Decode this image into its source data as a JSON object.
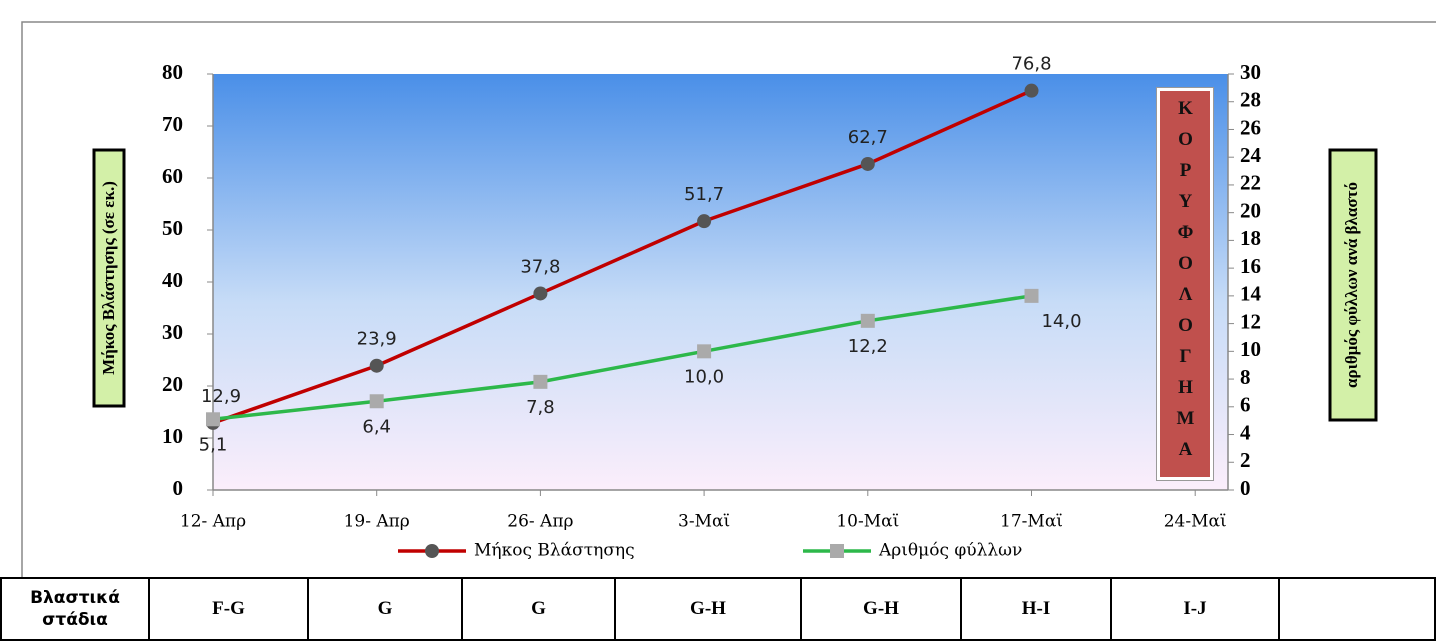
{
  "chart_data": {
    "type": "line",
    "categories": [
      "12- Απρ",
      "19- Απρ",
      "26- Απρ",
      "3-Μαϊ",
      "10-Μαϊ",
      "17-Μαϊ",
      "24-Μαϊ"
    ],
    "ylabel": "Μήκος Βλάστησης (σε εκ.)",
    "y2label": "αριθμός φύλλων ανά βλαστό",
    "annotation": "ΚΟΡΥΦΟΛΟΓΗΜΑ",
    "ylim": [
      0,
      80
    ],
    "yticks": [
      0,
      10,
      20,
      30,
      40,
      50,
      60,
      70,
      80
    ],
    "y2lim": [
      0,
      30
    ],
    "y2ticks": [
      0,
      2,
      4,
      6,
      8,
      10,
      12,
      14,
      16,
      18,
      20,
      22,
      24,
      26,
      28,
      30
    ],
    "series": [
      {
        "name": "Μήκος Βλάστησης",
        "color": "#c00000",
        "marker": "circle",
        "values": [
          12.9,
          23.9,
          37.8,
          51.7,
          62.7,
          76.8,
          null
        ],
        "value_labels": [
          "12,9",
          "23,9",
          "37,8",
          "51,7",
          "62,7",
          "76,8",
          null
        ]
      },
      {
        "name": "Αριθμός φύλλων",
        "color": "#2db84a",
        "marker": "square",
        "axis": "y2",
        "values": [
          5.1,
          6.4,
          7.8,
          10.0,
          12.2,
          14.0,
          null
        ],
        "value_labels": [
          "5,1",
          "6,4",
          "7,8",
          "10,0",
          "12,2",
          "14,0",
          null
        ]
      }
    ]
  },
  "table": {
    "rows": [
      [
        "Βλαστικά στάδια",
        "F-G",
        "G",
        "G",
        "G-H",
        "G-H",
        "H-I",
        "I-J"
      ]
    ]
  }
}
